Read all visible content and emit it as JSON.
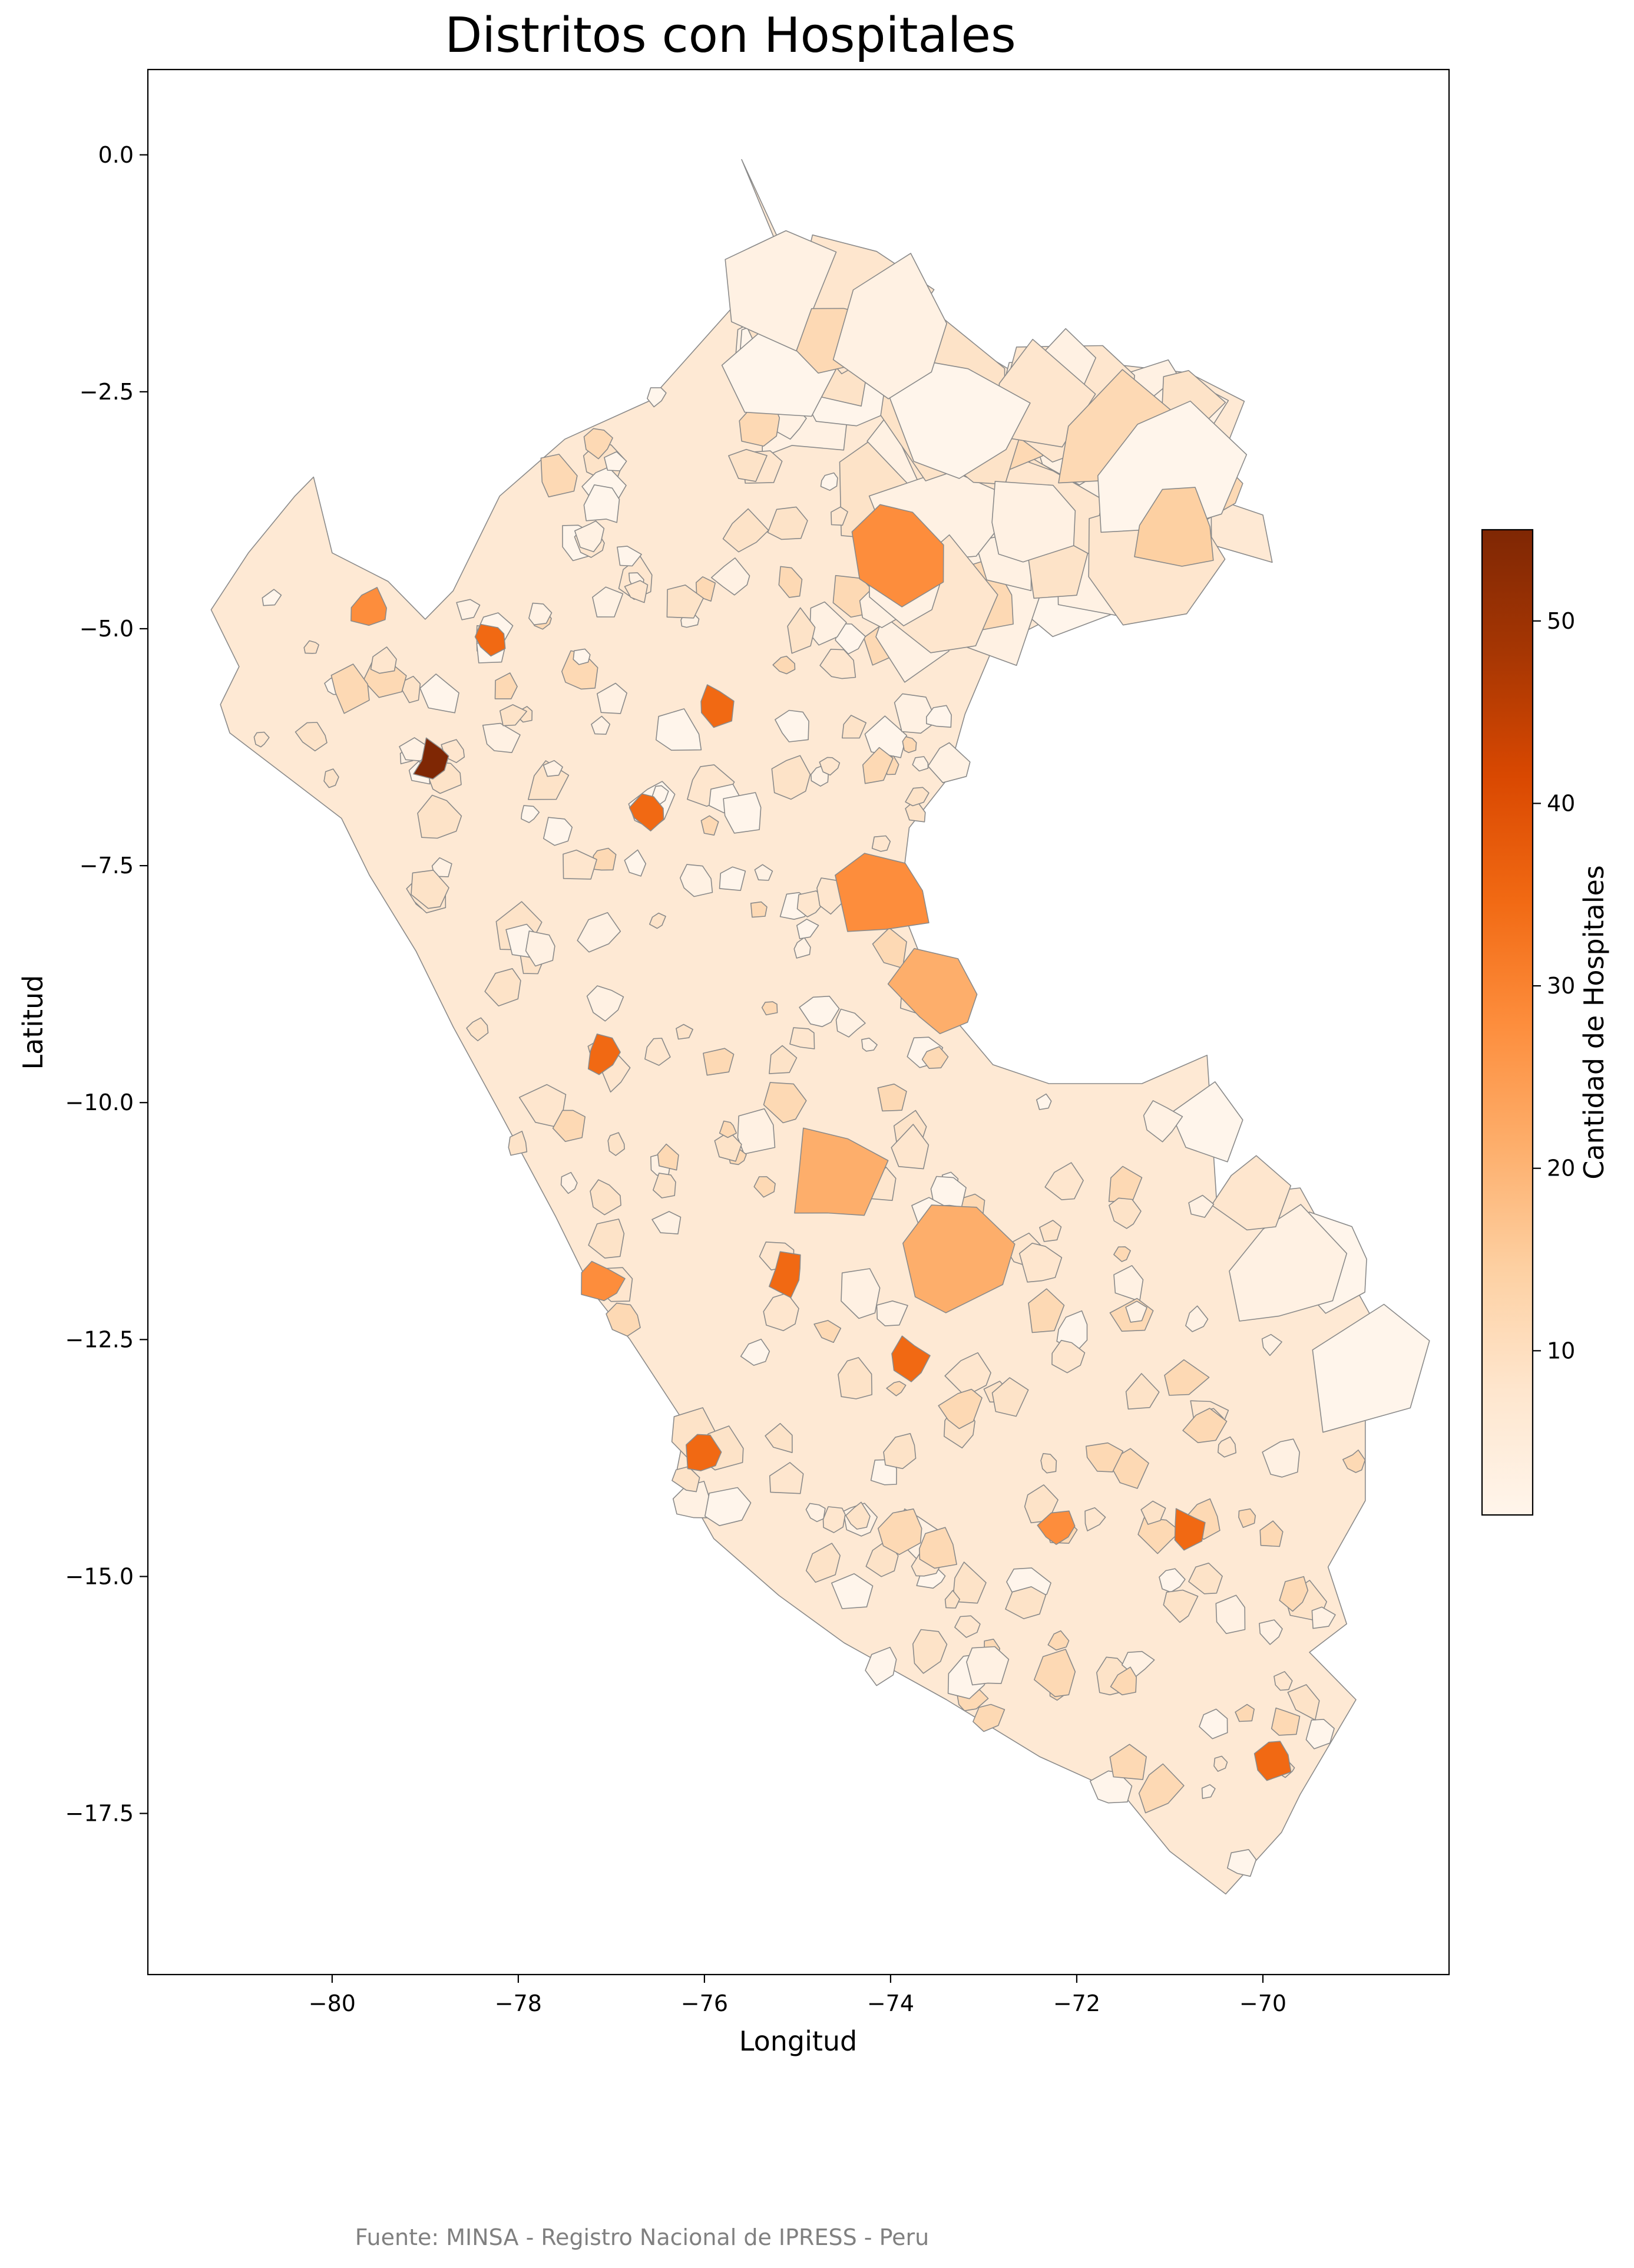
{
  "title": "Distritos con Hospitales",
  "xlabel": "Longitud",
  "ylabel": "Latitud",
  "source": "Fuente: MINSA - Registro Nacional de IPRESS - Peru",
  "x_ticks": [
    "−80",
    "−78",
    "−76",
    "−74",
    "−72",
    "−70"
  ],
  "y_ticks": [
    "0.0",
    "−2.5",
    "−5.0",
    "−7.5",
    "−10.0",
    "−12.5",
    "−15.0",
    "−17.5"
  ],
  "x_tick_values": [
    -80,
    -78,
    -76,
    -74,
    -72,
    -70
  ],
  "y_tick_values": [
    0.0,
    -2.5,
    -5.0,
    -7.5,
    -10.0,
    -12.5,
    -15.0,
    -17.5
  ],
  "xlim": [
    -81.98,
    -68.0
  ],
  "ylim": [
    -19.2,
    0.9
  ],
  "colorbar": {
    "label": "Cantidad de Hospitales",
    "ticks": [
      "10",
      "20",
      "30",
      "40",
      "50"
    ],
    "tick_values": [
      10,
      20,
      30,
      40,
      50
    ],
    "range": [
      1,
      55
    ],
    "colormap": "Oranges",
    "colors": [
      "#fff5eb",
      "#fee6ce",
      "#fdd0a2",
      "#fdae6b",
      "#fd8d3c",
      "#f16913",
      "#d94801",
      "#a63603",
      "#7f2704"
    ]
  },
  "chart_data": {
    "type": "choropleth",
    "title": "Distritos con Hospitales",
    "xlabel": "Longitud",
    "ylabel": "Latitud",
    "xlim": [
      -81.98,
      -68.0
    ],
    "ylim": [
      -19.2,
      0.9
    ],
    "value_label": "Cantidad de Hospitales",
    "value_range": [
      1,
      55
    ],
    "highlighted_districts": [
      {
        "lon": -78.9,
        "lat": -6.4,
        "value": 55
      },
      {
        "lon": -78.3,
        "lat": -5.1,
        "value": 38
      },
      {
        "lon": -75.9,
        "lat": -5.8,
        "value": 36
      },
      {
        "lon": -69.9,
        "lat": -16.9,
        "value": 35
      },
      {
        "lon": -74.0,
        "lat": -7.8,
        "value": 30
      },
      {
        "lon": -73.4,
        "lat": -8.9,
        "value": 20
      },
      {
        "lon": -73.3,
        "lat": -11.6,
        "value": 22
      },
      {
        "lon": -74.6,
        "lat": -10.8,
        "value": 21
      },
      {
        "lon": -70.8,
        "lat": -14.5,
        "value": 33
      },
      {
        "lon": -72.2,
        "lat": -14.5,
        "value": 28
      },
      {
        "lon": -79.6,
        "lat": -4.8,
        "value": 30
      },
      {
        "lon": -73.8,
        "lat": -12.7,
        "value": 34
      },
      {
        "lon": -77.1,
        "lat": -9.5,
        "value": 36
      },
      {
        "lon": -75.1,
        "lat": -11.8,
        "value": 33
      },
      {
        "lon": -76.6,
        "lat": -6.9,
        "value": 33
      },
      {
        "lon": -77.1,
        "lat": -11.9,
        "value": 28
      },
      {
        "lon": -76.0,
        "lat": -13.7,
        "value": 38
      },
      {
        "lon": -70.9,
        "lat": -4.0,
        "value": 15
      },
      {
        "lon": -73.9,
        "lat": -4.2,
        "value": 26
      }
    ]
  }
}
